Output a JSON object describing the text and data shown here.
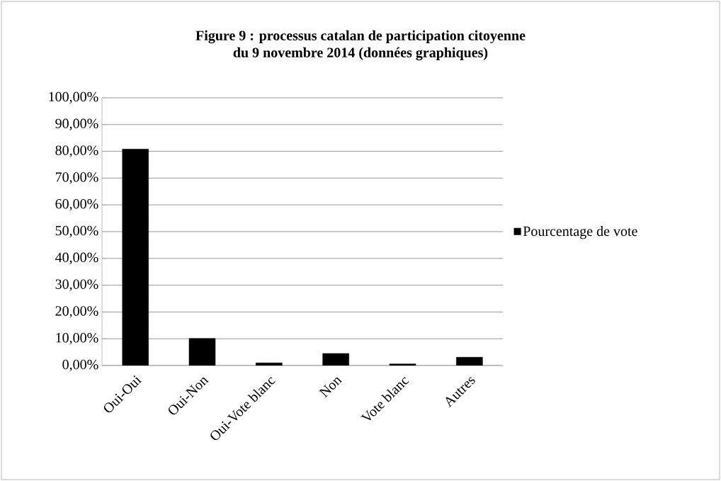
{
  "chart_data": {
    "type": "bar",
    "title": "Figure 9 : processus catalan de participation citoyenne\ndu 9 novembre 2014 (données graphiques)",
    "categories": [
      "Oui-Oui",
      "Oui-Non",
      "Oui-Vote blanc",
      "Non",
      "Vote blanc",
      "Autres"
    ],
    "series": [
      {
        "name": "Pourcentage de vote",
        "color": "#000000",
        "values": [
          80.8,
          10.1,
          1.0,
          4.5,
          0.6,
          3.1
        ]
      }
    ],
    "ylim": [
      0,
      100
    ],
    "yticks": [
      {
        "value": 0,
        "label": "0,00%"
      },
      {
        "value": 10,
        "label": "10,00%"
      },
      {
        "value": 20,
        "label": "20,00%"
      },
      {
        "value": 30,
        "label": "30,00%"
      },
      {
        "value": 40,
        "label": "40,00%"
      },
      {
        "value": 50,
        "label": "50,00%"
      },
      {
        "value": 60,
        "label": "60,00%"
      },
      {
        "value": 70,
        "label": "70,00%"
      },
      {
        "value": 80,
        "label": "80,00%"
      },
      {
        "value": 90,
        "label": "90,00%"
      },
      {
        "value": 100,
        "label": "100,00%"
      }
    ],
    "grid": "y",
    "legend": "right"
  }
}
